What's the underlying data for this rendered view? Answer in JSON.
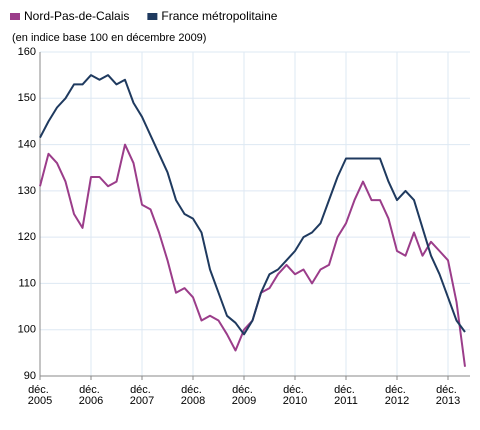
{
  "chart_data": {
    "type": "line",
    "subtitle": "(en indice base 100 en décembre 2009)",
    "categories": [
      "déc. 2005",
      null,
      null,
      null,
      null,
      null,
      "déc. 2006",
      null,
      null,
      null,
      null,
      null,
      "déc. 2007",
      null,
      null,
      null,
      null,
      null,
      "déc. 2008",
      null,
      null,
      null,
      null,
      null,
      "déc. 2009",
      null,
      null,
      null,
      null,
      null,
      "déc. 2010",
      null,
      null,
      null,
      null,
      null,
      "déc. 2011",
      null,
      null,
      null,
      null,
      null,
      "déc. 2012",
      null,
      null,
      null,
      null,
      null,
      "déc. 2013",
      null,
      null
    ],
    "series": [
      {
        "name": "Nord-Pas-de-Calais",
        "color": "#9b3d8a",
        "values": [
          131,
          138,
          136,
          132,
          125,
          122,
          133,
          133,
          131,
          132,
          140,
          136,
          127,
          126,
          121,
          115,
          108,
          109,
          107,
          102,
          103,
          102,
          99,
          95.5,
          100,
          102,
          108,
          109,
          112,
          114,
          112,
          113,
          110,
          113,
          114,
          120,
          123,
          128,
          132,
          128,
          128,
          124,
          117,
          116,
          121,
          116,
          119,
          117,
          115,
          106,
          92
        ]
      },
      {
        "name": "France métropolitaine",
        "color": "#1f3a5f",
        "values": [
          141.5,
          145,
          148,
          150,
          153,
          153,
          155,
          154,
          155,
          153,
          154,
          149,
          146,
          142,
          138,
          134,
          128,
          125,
          124,
          121,
          113,
          108,
          103,
          101.5,
          99,
          102,
          108,
          112,
          113,
          115,
          117,
          120,
          121,
          123,
          128,
          133,
          137,
          137,
          137,
          137,
          137,
          132,
          128,
          130,
          128,
          122,
          116,
          112,
          107,
          102,
          99.5
        ]
      }
    ],
    "ylim": [
      90,
      160
    ],
    "yticks": [
      90,
      100,
      110,
      120,
      130,
      140,
      150,
      160
    ],
    "grid": true
  }
}
